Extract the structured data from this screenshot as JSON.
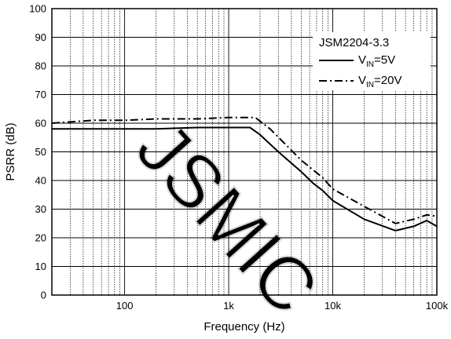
{
  "chart_data": {
    "type": "line",
    "title": "",
    "xlabel": "Frequency (Hz)",
    "ylabel": "PSRR (dB)",
    "xscale": "log",
    "xlim": [
      20,
      100000
    ],
    "ylim": [
      0,
      100
    ],
    "grid": true,
    "x_tick_values": [
      100,
      1000,
      10000,
      100000
    ],
    "x_tick_labels": [
      "100",
      "1k",
      "10k",
      "100k"
    ],
    "y_tick_values": [
      0,
      10,
      20,
      30,
      40,
      50,
      60,
      70,
      80,
      90,
      100
    ],
    "y_tick_labels": [
      "0",
      "10",
      "20",
      "30",
      "40",
      "50",
      "60",
      "70",
      "80",
      "90",
      "100"
    ],
    "legend": {
      "title": "JSM2204-3.3",
      "position": "top-right",
      "entries": [
        {
          "prefix": "V",
          "sub": "IN",
          "suffix": "=5V",
          "style": "solid"
        },
        {
          "prefix": "V",
          "sub": "IN",
          "suffix": "=20V",
          "style": "dashdot"
        }
      ]
    },
    "series": [
      {
        "style": "solid",
        "color": "#000000",
        "x": [
          20,
          50,
          100,
          200,
          500,
          1000,
          1600,
          2000,
          3000,
          5000,
          6500,
          8000,
          10000,
          20000,
          40000,
          60000,
          80000,
          100000
        ],
        "y": [
          58,
          58,
          58,
          58,
          58.5,
          58.5,
          58.5,
          56,
          50,
          43,
          39,
          36.5,
          33,
          26.5,
          22.5,
          24,
          26,
          24
        ]
      },
      {
        "style": "dashdot",
        "color": "#000000",
        "x": [
          20,
          50,
          100,
          200,
          500,
          1000,
          1800,
          2500,
          5000,
          8000,
          10000,
          20000,
          40000,
          60000,
          80000,
          100000
        ],
        "y": [
          60,
          61,
          61,
          61.5,
          61.5,
          62,
          62,
          58,
          47,
          41,
          37,
          31,
          25,
          26.5,
          28,
          27.5
        ]
      }
    ]
  },
  "watermark": "JSMIC"
}
